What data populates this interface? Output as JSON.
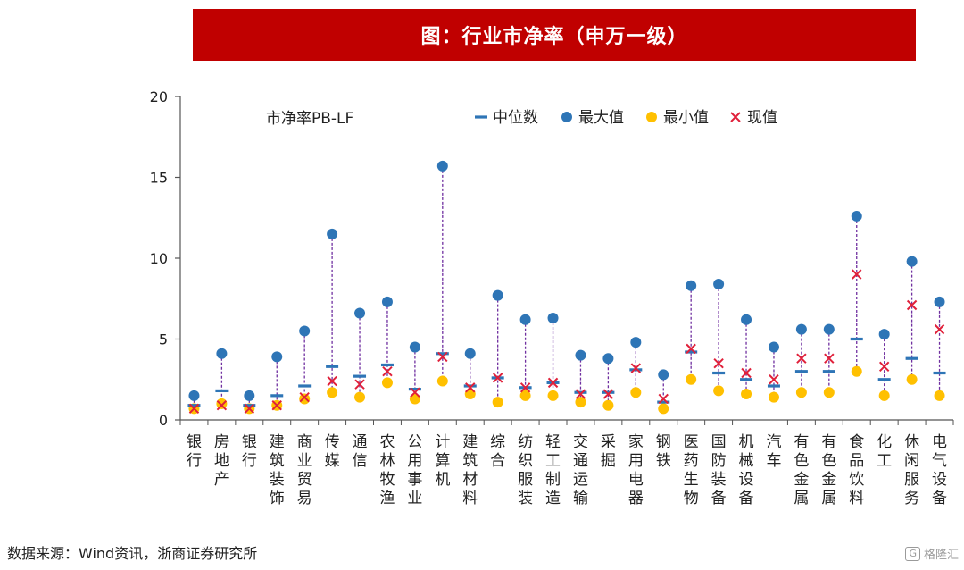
{
  "title": "图：行业市净率（申万一级）",
  "source": "数据来源：Wind资讯，浙商证券研究所",
  "watermark": "格隆汇",
  "colors": {
    "banner": "#c00000",
    "median": "#2e75b6",
    "max": "#2e75b6",
    "min": "#ffc000",
    "current": "#e0203a",
    "range_line": "#7030a0",
    "axis": "#555555"
  },
  "chart_data": {
    "type": "scatter",
    "title": "市净率PB-LF",
    "xlabel": "",
    "ylabel": "",
    "ylim": [
      0,
      20
    ],
    "yticks": [
      0,
      5,
      10,
      15,
      20
    ],
    "grid": false,
    "legend": [
      "中位数",
      "最大值",
      "最小值",
      "现值"
    ],
    "categories": [
      "银行",
      "房地产",
      "银行",
      "建筑装饰",
      "商业贸易",
      "传媒",
      "通信",
      "农林牧渔",
      "公用事业",
      "计算机",
      "建筑材料",
      "综合",
      "纺织服装",
      "轻工制造",
      "交通运输",
      "采掘",
      "家用电器",
      "钢铁",
      "医药生物",
      "国防装备",
      "机械设备",
      "汽车",
      "有色金属",
      "有色金属",
      "食品饮料",
      "化工",
      "休闲服务",
      "电气设备"
    ],
    "series": [
      {
        "name": "中位数",
        "values": [
          0.9,
          1.8,
          0.9,
          1.5,
          2.1,
          3.3,
          2.7,
          3.4,
          1.9,
          4.1,
          2.1,
          2.6,
          2.0,
          2.3,
          1.7,
          1.7,
          3.1,
          1.1,
          4.2,
          2.9,
          2.5,
          2.1,
          3.0,
          3.0,
          5.0,
          2.5,
          3.8,
          2.9
        ]
      },
      {
        "name": "最大值",
        "values": [
          1.5,
          4.1,
          1.5,
          3.9,
          5.5,
          11.5,
          6.6,
          7.3,
          4.5,
          15.7,
          4.1,
          7.7,
          6.2,
          6.3,
          4.0,
          3.8,
          4.8,
          2.8,
          8.3,
          8.4,
          6.2,
          4.5,
          5.6,
          5.6,
          12.6,
          5.3,
          9.8,
          7.3
        ]
      },
      {
        "name": "最小值",
        "values": [
          0.7,
          1.0,
          0.7,
          0.9,
          1.3,
          1.7,
          1.4,
          2.3,
          1.3,
          2.4,
          1.6,
          1.1,
          1.5,
          1.5,
          1.1,
          0.9,
          1.7,
          0.7,
          2.5,
          1.8,
          1.6,
          1.4,
          1.7,
          1.7,
          3.0,
          1.5,
          2.5,
          1.5
        ]
      },
      {
        "name": "现值",
        "values": [
          0.7,
          0.9,
          0.7,
          0.9,
          1.4,
          2.4,
          2.2,
          3.0,
          1.7,
          3.9,
          2.0,
          2.6,
          2.0,
          2.3,
          1.6,
          1.6,
          3.2,
          1.3,
          4.4,
          3.5,
          2.9,
          2.5,
          3.8,
          3.8,
          9.0,
          3.3,
          7.1,
          5.6
        ]
      }
    ]
  }
}
